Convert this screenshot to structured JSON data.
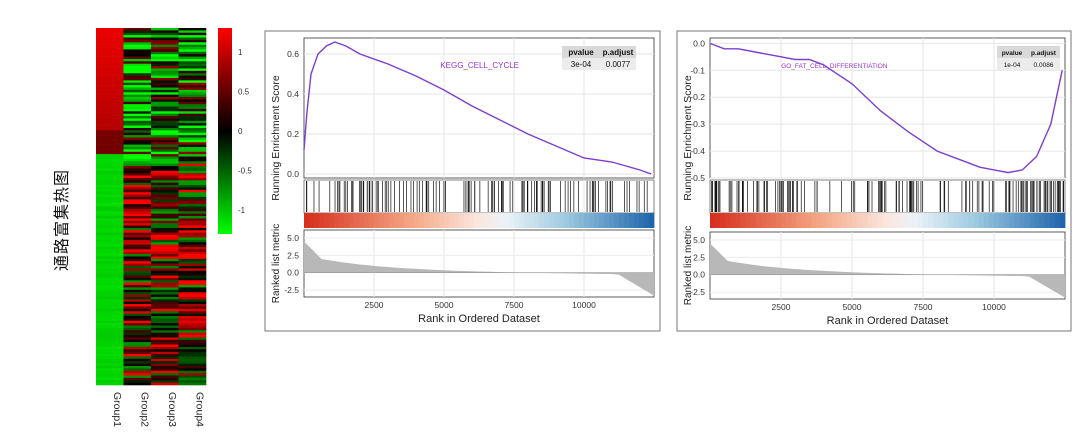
{
  "heatmap": {
    "ylabel": "通路富集热图",
    "groups": [
      "Group1",
      "Group2",
      "Group3",
      "Group4"
    ],
    "legend_ticks": [
      1,
      0.5,
      0,
      -0.5,
      -1
    ],
    "colors": {
      "high": "#ff0000",
      "mid": "#000000",
      "low": "#00ff00"
    }
  },
  "gsea": [
    {
      "ylabel_top": "Running Enrichment Score",
      "ylabel_bottom": "Ranked list metric",
      "xlabel": "Rank in Ordered Dataset",
      "term": "KEGG_CELL_CYCLE",
      "term_color": "#9933cc",
      "table_headers": [
        "pvalue",
        "p.adjust"
      ],
      "table_values": [
        "3e-04",
        "0.0077"
      ],
      "x_ticks": [
        "2500",
        "5000",
        "7500",
        "10000"
      ],
      "y_ticks": [
        "0.6",
        "0.4",
        "0.2",
        "0.0"
      ],
      "metric_ticks": [
        "5.0",
        "2.5",
        "0.0",
        "-2.5"
      ]
    },
    {
      "ylabel_top": "Running Enrichment Score",
      "ylabel_bottom": "Ranked list metric",
      "xlabel": "Rank in Ordered Dataset",
      "term": "GO_FAT_CELL_DIFFERENTIATION",
      "term_color": "#9933cc",
      "table_headers": [
        "pvalue",
        "p.adjust"
      ],
      "table_values": [
        "1e-04",
        "0.0086"
      ],
      "x_ticks": [
        "2500",
        "5000",
        "7500",
        "10000"
      ],
      "y_ticks": [
        "0.0",
        "-0.1",
        "-0.2",
        "-0.3",
        "-0.4",
        "-0.5"
      ],
      "metric_ticks": [
        "5.0",
        "2.5",
        "0.0",
        "-2.5"
      ]
    }
  ],
  "chart_data": [
    {
      "type": "heatmap",
      "columns": [
        "Group1",
        "Group2",
        "Group3",
        "Group4"
      ],
      "value_range": [
        -1.2,
        1.2
      ],
      "legend_ticks": [
        1,
        0.5,
        0,
        -0.5,
        -1
      ]
    },
    {
      "type": "line",
      "title": "",
      "term": "KEGG_CELL_CYCLE",
      "xlabel": "Rank in Ordered Dataset",
      "ylabel": "Running Enrichment Score",
      "xlim": [
        0,
        12500
      ],
      "ylim": [
        -0.02,
        0.68
      ],
      "x": [
        0,
        100,
        250,
        500,
        800,
        1100,
        1500,
        2000,
        3000,
        4000,
        5000,
        6000,
        7000,
        8000,
        9000,
        10000,
        11000,
        11500,
        12000,
        12400
      ],
      "y": [
        0.12,
        0.3,
        0.5,
        0.6,
        0.64,
        0.66,
        0.64,
        0.6,
        0.55,
        0.49,
        0.42,
        0.34,
        0.27,
        0.2,
        0.14,
        0.08,
        0.06,
        0.04,
        0.02,
        0.0
      ],
      "pvalue": "3e-04",
      "p_adjust": "0.0077"
    },
    {
      "type": "line",
      "title": "",
      "term": "GO_FAT_CELL_DIFFERENTIATION",
      "xlabel": "Rank in Ordered Dataset",
      "ylabel": "Running Enrichment Score",
      "xlim": [
        0,
        12500
      ],
      "ylim": [
        -0.5,
        0.02
      ],
      "x": [
        0,
        500,
        1000,
        1500,
        2000,
        2500,
        3000,
        3500,
        4000,
        5000,
        6000,
        7000,
        8000,
        9000,
        9500,
        10000,
        10500,
        11000,
        11500,
        12000,
        12200,
        12400
      ],
      "y": [
        0.0,
        -0.02,
        -0.02,
        -0.03,
        -0.04,
        -0.05,
        -0.06,
        -0.06,
        -0.08,
        -0.15,
        -0.25,
        -0.33,
        -0.4,
        -0.44,
        -0.46,
        -0.47,
        -0.48,
        -0.47,
        -0.42,
        -0.3,
        -0.2,
        -0.1
      ],
      "pvalue": "1e-04",
      "p_adjust": "0.0086"
    }
  ]
}
